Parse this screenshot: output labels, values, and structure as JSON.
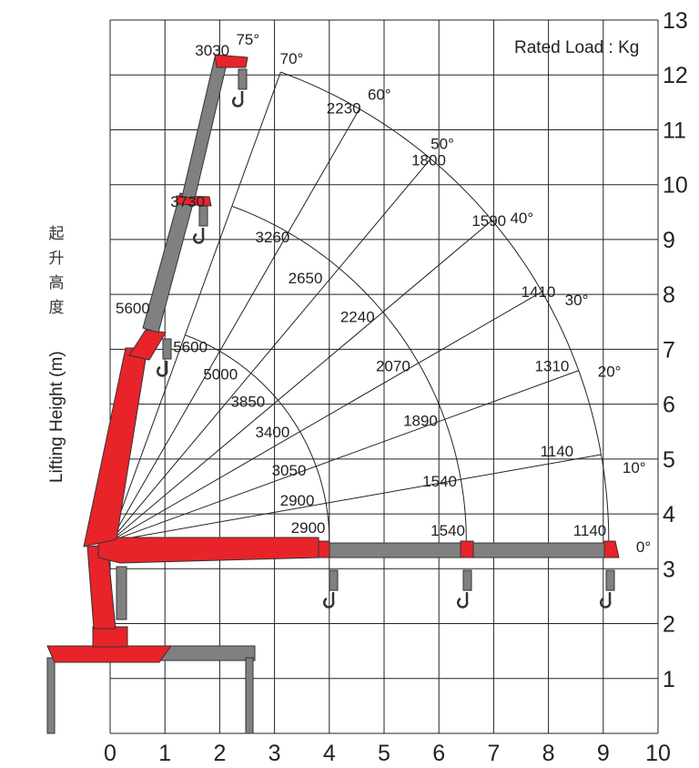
{
  "chart_data": {
    "type": "load-radius diagram",
    "note": "Rated  Load : Kg",
    "ylabel": "Lifting Height (m)",
    "ylabel_cn": [
      "起",
      "升",
      "高",
      "度"
    ],
    "xlim": [
      0,
      10
    ],
    "ylim": [
      0,
      13
    ],
    "x_ticks": [
      "0",
      "1",
      "2",
      "3",
      "4",
      "5",
      "6",
      "7",
      "8",
      "9",
      "10"
    ],
    "y_ticks": [
      "1",
      "2",
      "3",
      "4",
      "5",
      "6",
      "7",
      "8",
      "9",
      "10",
      "11",
      "12",
      "13"
    ],
    "angles": [
      {
        "label": "0°",
        "x": 9.6,
        "y": 3.3
      },
      {
        "label": "10°",
        "x": 9.35,
        "y": 4.75
      },
      {
        "label": "20°",
        "x": 8.9,
        "y": 6.5
      },
      {
        "label": "30°",
        "x": 8.3,
        "y": 7.8
      },
      {
        "label": "40°",
        "x": 7.3,
        "y": 9.3
      },
      {
        "label": "50°",
        "x": 5.85,
        "y": 10.65
      },
      {
        "label": "60°",
        "x": 4.7,
        "y": 11.55
      },
      {
        "label": "70°",
        "x": 3.1,
        "y": 12.2
      },
      {
        "label": "75°",
        "x": 2.3,
        "y": 12.55
      }
    ],
    "loads": [
      {
        "label": "3030",
        "x": 1.55,
        "y": 12.35
      },
      {
        "label": "2230",
        "x": 3.95,
        "y": 11.3
      },
      {
        "label": "1800",
        "x": 5.5,
        "y": 10.35
      },
      {
        "label": "1590",
        "x": 6.6,
        "y": 9.25
      },
      {
        "label": "1410",
        "x": 7.5,
        "y": 7.95
      },
      {
        "label": "1310",
        "x": 7.75,
        "y": 6.6
      },
      {
        "label": "1140",
        "x": 7.85,
        "y": 5.05
      },
      {
        "label": "1140",
        "x": 8.45,
        "y": 3.6
      },
      {
        "label": "3730",
        "x": 1.1,
        "y": 9.6
      },
      {
        "label": "3260",
        "x": 2.65,
        "y": 8.95
      },
      {
        "label": "2650",
        "x": 3.25,
        "y": 8.2
      },
      {
        "label": "2240",
        "x": 4.2,
        "y": 7.5
      },
      {
        "label": "2070",
        "x": 4.85,
        "y": 6.6
      },
      {
        "label": "1890",
        "x": 5.35,
        "y": 5.6
      },
      {
        "label": "1540",
        "x": 5.7,
        "y": 4.5
      },
      {
        "label": "1540",
        "x": 5.85,
        "y": 3.6
      },
      {
        "label": "5600",
        "x": 0.1,
        "y": 7.65
      },
      {
        "label": "5600",
        "x": 1.15,
        "y": 6.95
      },
      {
        "label": "5000",
        "x": 1.7,
        "y": 6.45
      },
      {
        "label": "3850",
        "x": 2.2,
        "y": 5.95
      },
      {
        "label": "3400",
        "x": 2.65,
        "y": 5.4
      },
      {
        "label": "3050",
        "x": 2.95,
        "y": 4.7
      },
      {
        "label": "2900",
        "x": 3.1,
        "y": 4.15
      },
      {
        "label": "2900",
        "x": 3.3,
        "y": 3.65
      }
    ]
  }
}
